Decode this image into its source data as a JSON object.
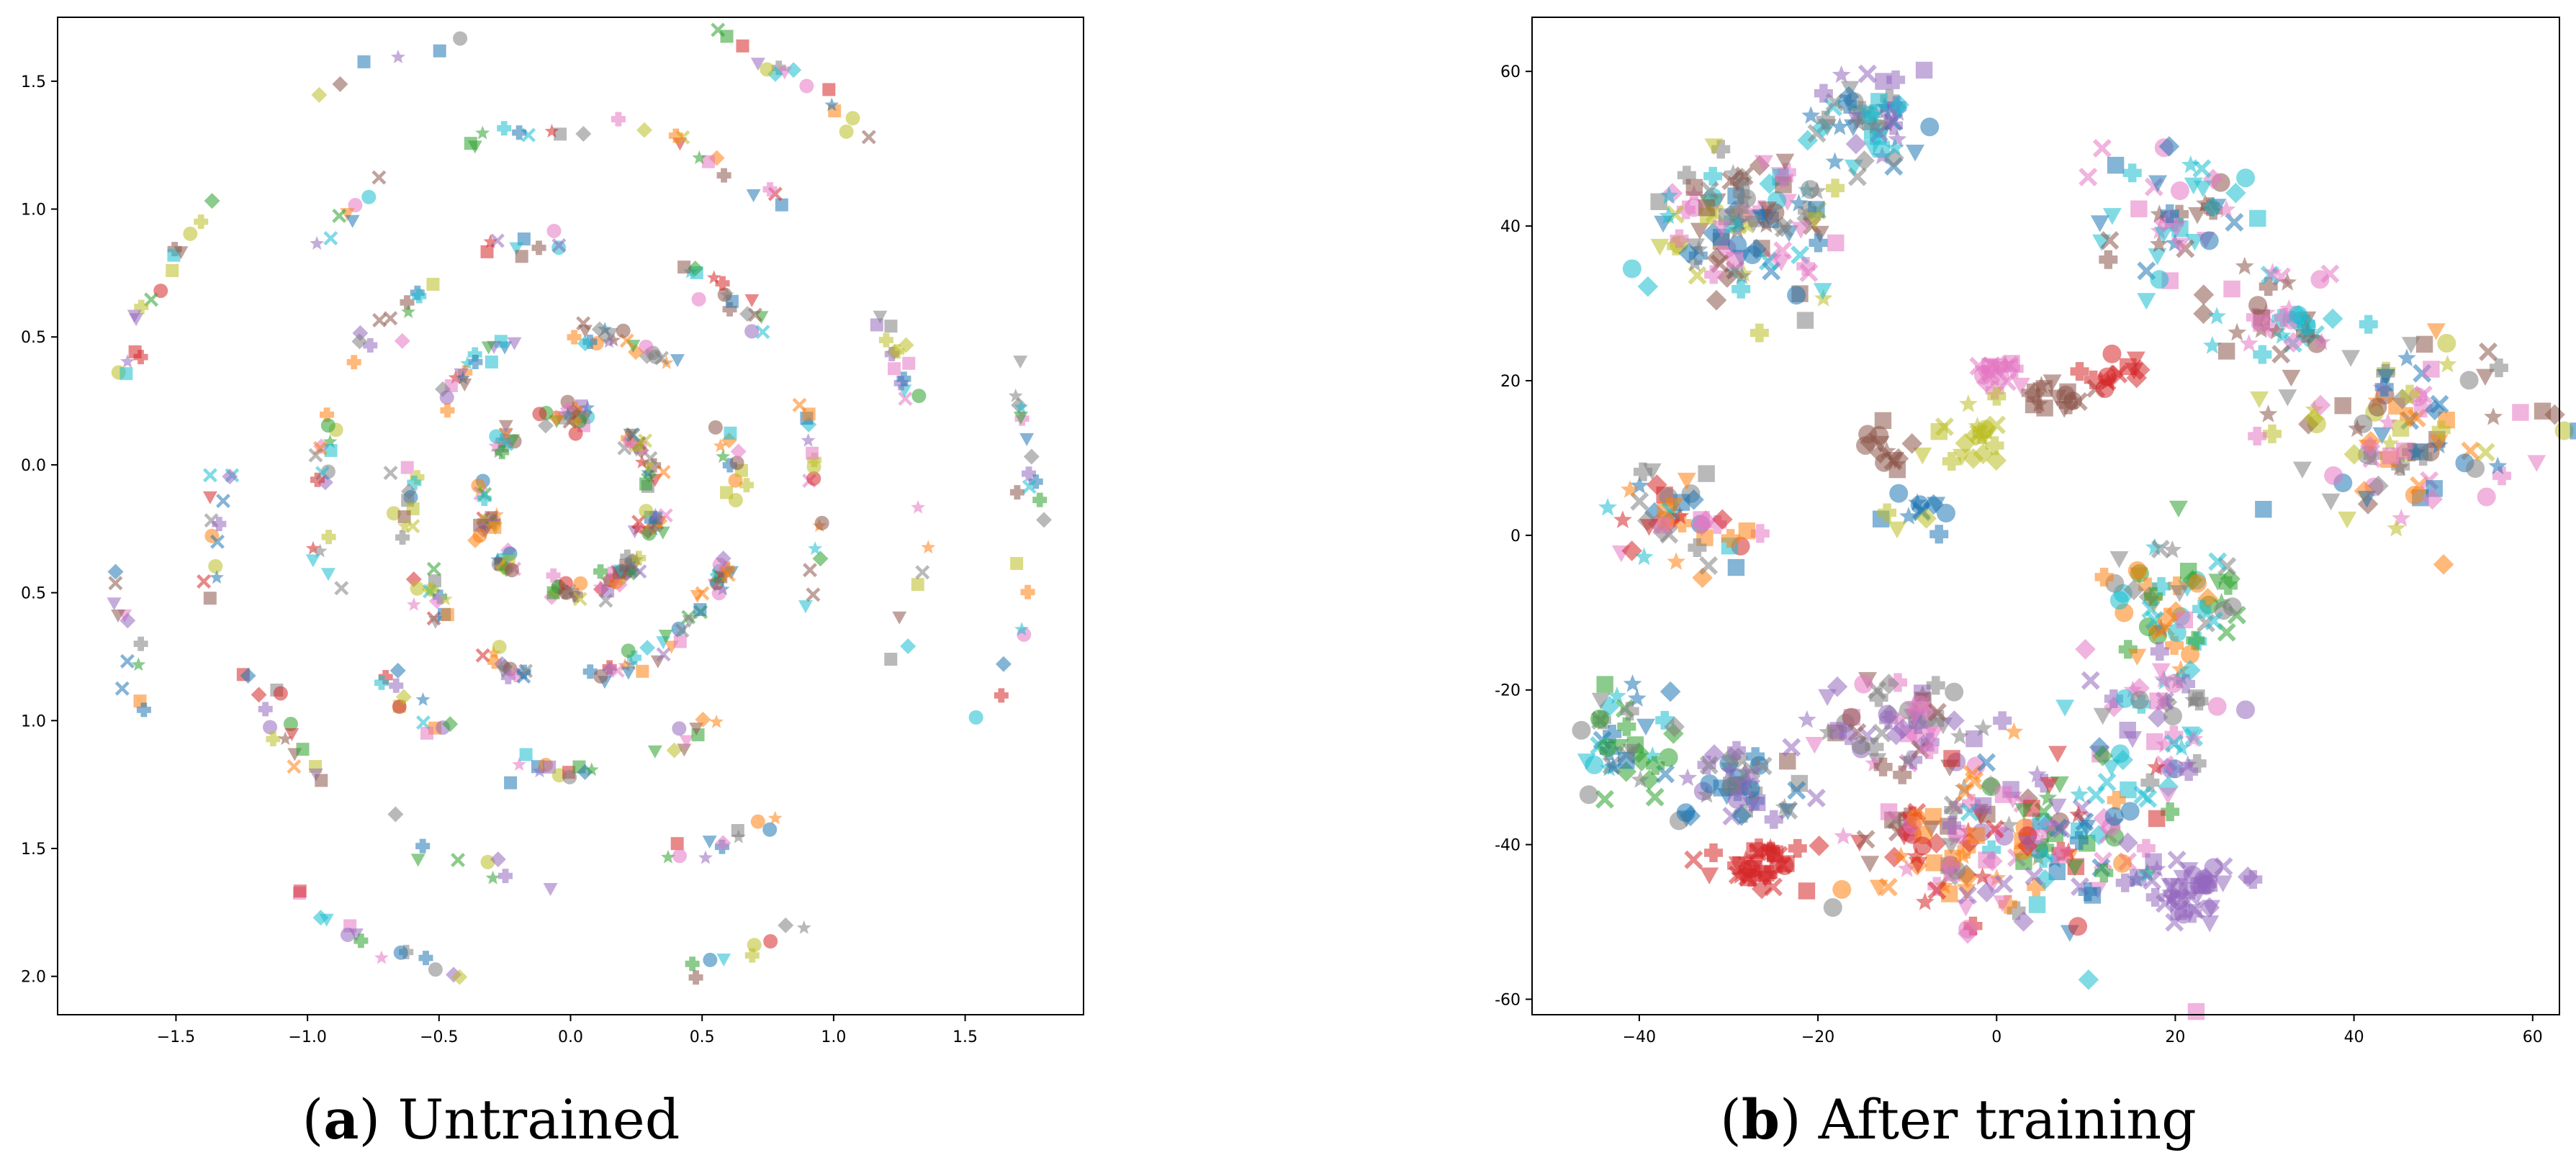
{
  "colors": [
    "#1f77b4",
    "#ff7f0e",
    "#2ca02c",
    "#d62728",
    "#9467bd",
    "#8c564b",
    "#e377c2",
    "#7f7f7f",
    "#bcbd22",
    "#17becf"
  ],
  "marker_shapes": [
    "circle",
    "square",
    "diamond",
    "triangle-down",
    "plus",
    "star",
    "cross"
  ],
  "chart_data": [
    {
      "type": "scatter",
      "caption_letter": "a",
      "caption_text": "Untrained",
      "xlim": [
        -1.95,
        1.95
      ],
      "ylim": [
        -2.15,
        1.75
      ],
      "inverted_y": true,
      "xticks": [
        -1.5,
        -1.0,
        -0.5,
        0.0,
        0.5,
        1.0,
        1.5
      ],
      "xtick_labels": [
        "−1.5",
        "−1.0",
        "−0.5",
        "0.0",
        "0.5",
        "1.0",
        "1.5"
      ],
      "yticks": [
        1.5,
        1.0,
        0.5,
        0.0,
        -0.5,
        -1.0,
        -1.5,
        -2.0
      ],
      "ytick_labels": [
        "1.5",
        "1.0",
        "0.5",
        "0.0",
        "0.5",
        "1.0",
        "1.5",
        "2.0"
      ],
      "grid": false,
      "legend": "none",
      "structure": "points lie on concentric noisy rings (radii approx. 1.75, 1.35, 0.95, 0.6, 0.3) centred near (0.0, -0.15), each ring broken into short multi-coloured arcs"
    },
    {
      "type": "scatter",
      "caption_letter": "b",
      "caption_text": "After training",
      "xlim": [
        -52,
        63
      ],
      "ylim": [
        -62,
        67
      ],
      "xticks": [
        -40,
        -20,
        0,
        20,
        40,
        60
      ],
      "xtick_labels": [
        "−40",
        "−20",
        "0",
        "20",
        "40",
        "60"
      ],
      "yticks": [
        60,
        40,
        20,
        0,
        -20,
        -40,
        -60
      ],
      "ytick_labels": [
        "60",
        "40",
        "20",
        "0",
        "-20",
        "-40",
        "-60"
      ],
      "grid": false,
      "legend": "none",
      "clusters": [
        {
          "cx": -28,
          "cy": 40,
          "sx": 6,
          "sy": 5,
          "n": 130,
          "colors": [
            0,
            5,
            6,
            7,
            8,
            9
          ]
        },
        {
          "cx": -14,
          "cy": 54,
          "sx": 3,
          "sy": 4,
          "n": 60,
          "colors": [
            4,
            7,
            0,
            9
          ]
        },
        {
          "cx": 20,
          "cy": 42,
          "sx": 4,
          "sy": 5,
          "n": 55,
          "colors": [
            9,
            5,
            6,
            0
          ]
        },
        {
          "cx": 32,
          "cy": 28,
          "sx": 4,
          "sy": 3,
          "n": 45,
          "colors": [
            9,
            6,
            5
          ]
        },
        {
          "cx": 45,
          "cy": 14,
          "sx": 7,
          "sy": 6,
          "n": 110,
          "colors": [
            1,
            8,
            5,
            7,
            0,
            6
          ]
        },
        {
          "cx": 0,
          "cy": 21,
          "sx": 1.5,
          "sy": 1.5,
          "n": 18,
          "colors": [
            6
          ]
        },
        {
          "cx": -3,
          "cy": 13,
          "sx": 2,
          "sy": 2,
          "n": 20,
          "colors": [
            8
          ]
        },
        {
          "cx": 6,
          "cy": 18,
          "sx": 3,
          "sy": 1,
          "n": 16,
          "colors": [
            5
          ]
        },
        {
          "cx": 13,
          "cy": 21,
          "sx": 2,
          "sy": 1.5,
          "n": 14,
          "colors": [
            3
          ]
        },
        {
          "cx": -12,
          "cy": 11,
          "sx": 1.5,
          "sy": 1.5,
          "n": 14,
          "colors": [
            5
          ]
        },
        {
          "cx": -9,
          "cy": 3,
          "sx": 2,
          "sy": 1.5,
          "n": 14,
          "colors": [
            0,
            8
          ]
        },
        {
          "cx": -35,
          "cy": 2,
          "sx": 4,
          "sy": 2.5,
          "n": 50,
          "colors": [
            0,
            9,
            6,
            7,
            3,
            1
          ]
        },
        {
          "cx": 20,
          "cy": -8,
          "sx": 4,
          "sy": 4,
          "n": 60,
          "colors": [
            2,
            9,
            7,
            1
          ]
        },
        {
          "cx": 18,
          "cy": -24,
          "sx": 4,
          "sy": 5,
          "n": 55,
          "colors": [
            6,
            7,
            4,
            9
          ]
        },
        {
          "cx": -42,
          "cy": -26,
          "sx": 3,
          "sy": 4,
          "n": 45,
          "colors": [
            2,
            0,
            7,
            9
          ]
        },
        {
          "cx": -28,
          "cy": -32,
          "sx": 4,
          "sy": 3,
          "n": 50,
          "colors": [
            0,
            4,
            7
          ]
        },
        {
          "cx": -27,
          "cy": -43,
          "sx": 3,
          "sy": 2,
          "n": 35,
          "colors": [
            3
          ]
        },
        {
          "cx": -10,
          "cy": -24,
          "sx": 5,
          "sy": 3,
          "n": 70,
          "colors": [
            4,
            6,
            7,
            5
          ]
        },
        {
          "cx": -6,
          "cy": -40,
          "sx": 6,
          "sy": 5,
          "n": 90,
          "colors": [
            1,
            5,
            6,
            3,
            7
          ]
        },
        {
          "cx": 8,
          "cy": -40,
          "sx": 6,
          "sy": 7,
          "n": 110,
          "colors": [
            0,
            2,
            9,
            1,
            3,
            6,
            4
          ]
        },
        {
          "cx": 22,
          "cy": -46,
          "sx": 3,
          "sy": 2,
          "n": 40,
          "colors": [
            4
          ]
        }
      ]
    }
  ]
}
